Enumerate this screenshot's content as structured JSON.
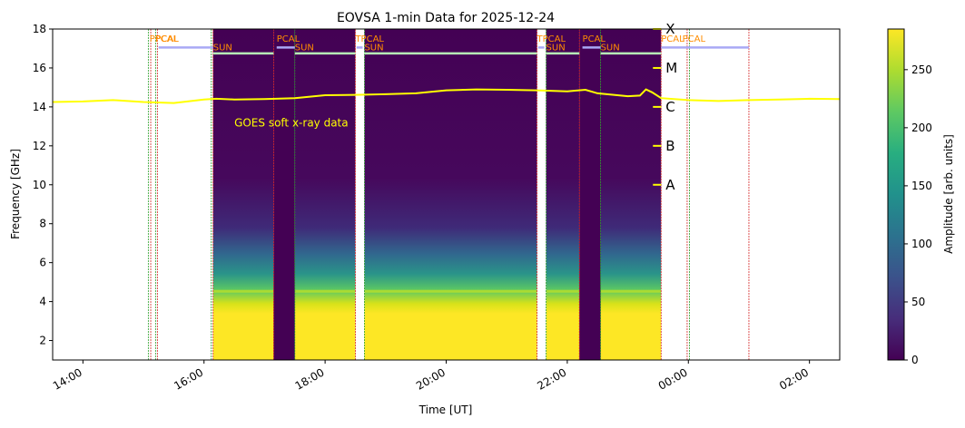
{
  "chart_data": {
    "type": "heatmap",
    "title": "EOVSA 1-min Data for 2025-12-24",
    "xlabel": "Time [UT]",
    "ylabel": "Frequency [GHz]",
    "xlim": [
      13.5,
      26.5
    ],
    "ylim": [
      1.0,
      18.0
    ],
    "x_unit": "hours UT since 2025-12-24 00:00",
    "xticks": [
      {
        "value": 14,
        "label": "14:00"
      },
      {
        "value": 16,
        "label": "16:00"
      },
      {
        "value": 18,
        "label": "18:00"
      },
      {
        "value": 20,
        "label": "20:00"
      },
      {
        "value": 22,
        "label": "22:00"
      },
      {
        "value": 24,
        "label": "00:00"
      },
      {
        "value": 26,
        "label": "02:00"
      }
    ],
    "yticks": [
      2,
      4,
      6,
      8,
      10,
      12,
      14,
      16,
      18
    ],
    "colorbar": {
      "label": "Amplitude [arb. units]",
      "colormap": "viridis",
      "range": [
        0,
        285
      ],
      "ticks": [
        0,
        50,
        100,
        150,
        200,
        250
      ]
    },
    "observation_segments": [
      {
        "start": 16.15,
        "end": 17.15
      },
      {
        "start": 17.5,
        "end": 18.5
      },
      {
        "start": 18.65,
        "end": 21.5
      },
      {
        "start": 21.65,
        "end": 22.2
      },
      {
        "start": 22.55,
        "end": 23.55
      }
    ],
    "gaps": [
      {
        "start": 17.15,
        "end": 17.5
      },
      {
        "start": 22.2,
        "end": 22.55
      }
    ],
    "scan_labels": [
      {
        "label": "PPCAL",
        "time": 15.1,
        "color": "#ff8c00"
      },
      {
        "label": "PCAL",
        "time": 15.2,
        "color": "#ff8c00"
      },
      {
        "label": "SUN",
        "time": 16.15,
        "color": "#ff8c00"
      },
      {
        "label": "PCAL",
        "time": 17.2,
        "color": "#ff8c00"
      },
      {
        "label": "SUN",
        "time": 17.5,
        "color": "#ff8c00"
      },
      {
        "label": "TPCAL",
        "time": 18.5,
        "color": "#ff8c00"
      },
      {
        "label": "SUN",
        "time": 18.65,
        "color": "#ff8c00"
      },
      {
        "label": "TPCAL",
        "time": 21.5,
        "color": "#ff8c00"
      },
      {
        "label": "SUN",
        "time": 21.65,
        "color": "#ff8c00"
      },
      {
        "label": "PCAL",
        "time": 22.25,
        "color": "#ff8c00"
      },
      {
        "label": "SUN",
        "time": 22.55,
        "color": "#ff8c00"
      },
      {
        "label": "PCAL",
        "time": 23.55,
        "color": "#ff8c00"
      },
      {
        "label": "PCAL",
        "time": 23.9,
        "color": "#ff8c00"
      }
    ],
    "calibration_bars": [
      {
        "start": 15.25,
        "end": 16.15,
        "freq": 17.05,
        "color": "#a9a9f5"
      },
      {
        "start": 17.2,
        "end": 17.5,
        "freq": 17.05,
        "color": "#a9a9f5"
      },
      {
        "start": 18.52,
        "end": 18.62,
        "freq": 17.05,
        "color": "#a9a9f5"
      },
      {
        "start": 21.52,
        "end": 21.62,
        "freq": 17.05,
        "color": "#a9a9f5"
      },
      {
        "start": 22.25,
        "end": 22.55,
        "freq": 17.05,
        "color": "#a9a9f5"
      },
      {
        "start": 23.55,
        "end": 25.0,
        "freq": 17.05,
        "color": "#a9a9f5"
      }
    ],
    "sun_bars": [
      {
        "start": 16.15,
        "end": 17.15,
        "freq": 16.75,
        "color": "#b7f0b7"
      },
      {
        "start": 17.5,
        "end": 18.5,
        "freq": 16.75,
        "color": "#b7f0b7"
      },
      {
        "start": 18.65,
        "end": 21.5,
        "freq": 16.75,
        "color": "#b7f0b7"
      },
      {
        "start": 21.65,
        "end": 22.2,
        "freq": 16.75,
        "color": "#b7f0b7"
      },
      {
        "start": 22.55,
        "end": 23.55,
        "freq": 16.75,
        "color": "#b7f0b7"
      }
    ],
    "marker_lines": [
      {
        "time": 15.08,
        "color": "#2ca02c"
      },
      {
        "time": 15.12,
        "color": "#d62728"
      },
      {
        "time": 15.2,
        "color": "#2ca02c"
      },
      {
        "time": 15.23,
        "color": "#d62728"
      },
      {
        "time": 16.12,
        "color": "#2ca02c"
      },
      {
        "time": 16.15,
        "color": "#d62728"
      },
      {
        "time": 17.15,
        "color": "#d62728"
      },
      {
        "time": 17.5,
        "color": "#2ca02c"
      },
      {
        "time": 18.5,
        "color": "#d62728"
      },
      {
        "time": 18.65,
        "color": "#2ca02c"
      },
      {
        "time": 21.5,
        "color": "#d62728"
      },
      {
        "time": 21.65,
        "color": "#2ca02c"
      },
      {
        "time": 22.2,
        "color": "#d62728"
      },
      {
        "time": 22.55,
        "color": "#2ca02c"
      },
      {
        "time": 23.55,
        "color": "#d62728"
      },
      {
        "time": 23.98,
        "color": "#d62728"
      },
      {
        "time": 24.02,
        "color": "#2ca02c"
      },
      {
        "time": 25.0,
        "color": "#d62728"
      }
    ],
    "goes_series": {
      "color": "#ffff00",
      "x": [
        13.5,
        14.0,
        14.5,
        15.0,
        15.5,
        16.0,
        16.2,
        16.5,
        17.0,
        17.5,
        18.0,
        18.5,
        19.0,
        19.5,
        20.0,
        20.5,
        21.0,
        21.5,
        22.0,
        22.3,
        22.5,
        23.0,
        23.2,
        23.3,
        23.4,
        23.55,
        24.0,
        24.5,
        25.0,
        25.5,
        26.0,
        26.5
      ],
      "y": [
        14.25,
        14.28,
        14.35,
        14.25,
        14.2,
        14.38,
        14.42,
        14.38,
        14.4,
        14.45,
        14.6,
        14.62,
        14.65,
        14.7,
        14.85,
        14.9,
        14.88,
        14.85,
        14.8,
        14.88,
        14.7,
        14.55,
        14.58,
        14.9,
        14.75,
        14.45,
        14.35,
        14.3,
        14.35,
        14.38,
        14.42,
        14.4
      ]
    },
    "goes_label": {
      "text": "GOES soft x-ray data",
      "time": 16.5,
      "freq": 13.0,
      "color": "#ffff00"
    },
    "goes_classes": [
      {
        "label": "X",
        "freq": 18.0
      },
      {
        "label": "M",
        "freq": 16.0
      },
      {
        "label": "C",
        "freq": 14.0
      },
      {
        "label": "B",
        "freq": 12.0
      },
      {
        "label": "A",
        "freq": 10.0
      }
    ]
  }
}
